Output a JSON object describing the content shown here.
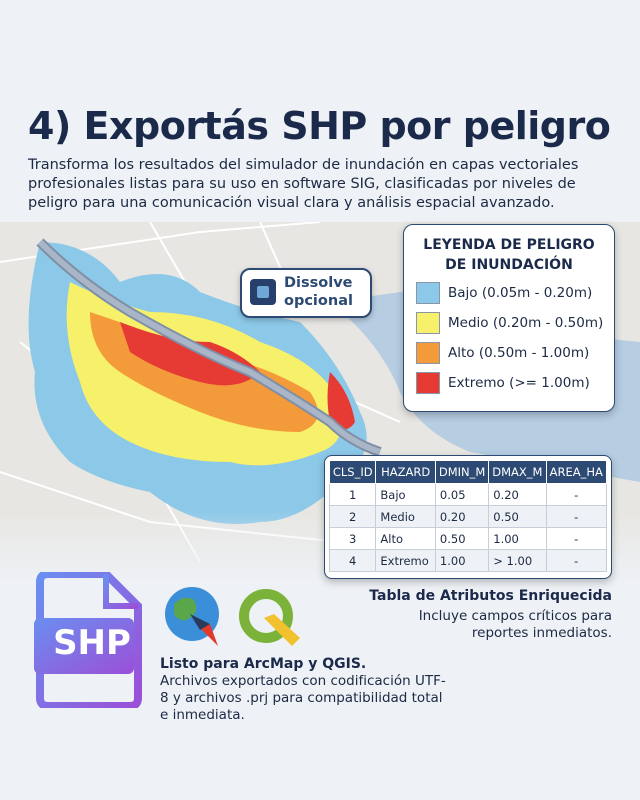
{
  "header": {
    "title": "4) Exportás SHP por peligro",
    "description": "Transforma los resultados del simulador de inundación en capas vectoriales profesionales listas para su uso en software SIG, clasificadas por niveles de peligro para una comunicación visual clara y análisis espacial avanzado."
  },
  "map": {
    "badge": "Dissolve opcional"
  },
  "legend": {
    "title": [
      "LEYENDA DE PELIGRO",
      "DE INUNDACIÓN"
    ],
    "items": [
      {
        "label": "Bajo (0.05m - 0.20m)",
        "color": "#8cc8e8"
      },
      {
        "label": "Medio (0.20m - 0.50m)",
        "color": "#f7f06a"
      },
      {
        "label": "Alto (0.50m - 1.00m)",
        "color": "#f39a3a"
      },
      {
        "label": "Extremo (>= 1.00m)",
        "color": "#e63a35"
      }
    ]
  },
  "table": {
    "headers": [
      "CLS_ID",
      "HAZARD",
      "DMIN_M",
      "DMAX_M",
      "AREA_HA"
    ],
    "rows": [
      [
        "1",
        "Bajo",
        "0.05",
        "0.20",
        "-"
      ],
      [
        "2",
        "Medio",
        "0.20",
        "0.50",
        "-"
      ],
      [
        "3",
        "Alto",
        "0.50",
        "1.00",
        "-"
      ],
      [
        "4",
        "Extremo",
        "1.00",
        "> 1.00",
        "-"
      ]
    ],
    "caption_title": "Tabla de Atributos Enriquecida",
    "caption_text": "Incluye campos críticos para reportes inmediatos."
  },
  "footer": {
    "icon_label": "SHP",
    "title": "Listo para ArcMap y QGIS.",
    "text": "Archivos exportados con codificación UTF-8 y archivos .prj para compatibilidad total e inmediata."
  }
}
